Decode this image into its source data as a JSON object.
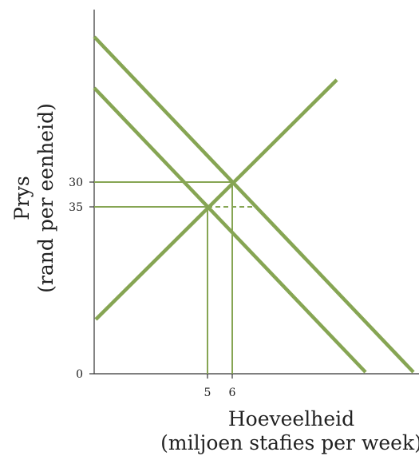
{
  "y_axis": {
    "title": "Prys",
    "subtitle": "(rand per eenheid)",
    "ticks": [
      "30",
      "35",
      "0"
    ]
  },
  "x_axis": {
    "title": "Hoeveelheid",
    "subtitle": "(miljoen stafies per week)",
    "ticks": [
      "5",
      "6"
    ]
  }
}
